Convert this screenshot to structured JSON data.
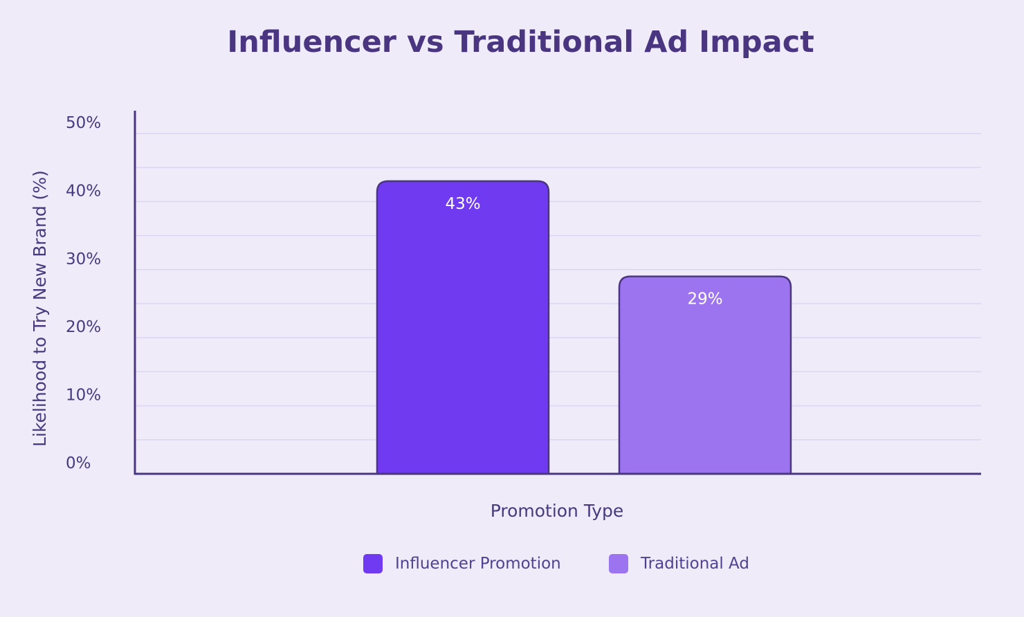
{
  "chart_data": {
    "type": "bar",
    "title": "Influencer vs Traditional Ad Impact",
    "xlabel": "Promotion Type",
    "ylabel": "Likelihood to Try New Brand (%)",
    "categories": [
      "Influencer Promotion",
      "Traditional Ad"
    ],
    "values": [
      43,
      29
    ],
    "value_labels": [
      "43%",
      "29%"
    ],
    "ylim": [
      0,
      50
    ],
    "yticks": [
      0,
      10,
      20,
      30,
      40,
      50
    ],
    "ytick_labels": [
      "0%",
      "10%",
      "20%",
      "30%",
      "40%",
      "50%"
    ],
    "grid": true,
    "legend": {
      "placement": "bottom-center",
      "entries": [
        "Influencer Promotion",
        "Traditional Ad"
      ]
    },
    "colors": {
      "background": "#efebf8",
      "bar_fill": [
        "#6f3af0",
        "#9d74f0"
      ],
      "bar_stroke": "#4a3680",
      "axis": "#4a3680",
      "grid": "#dcd5f3",
      "text": "#483a7e",
      "value_label": "#ffffff"
    }
  }
}
